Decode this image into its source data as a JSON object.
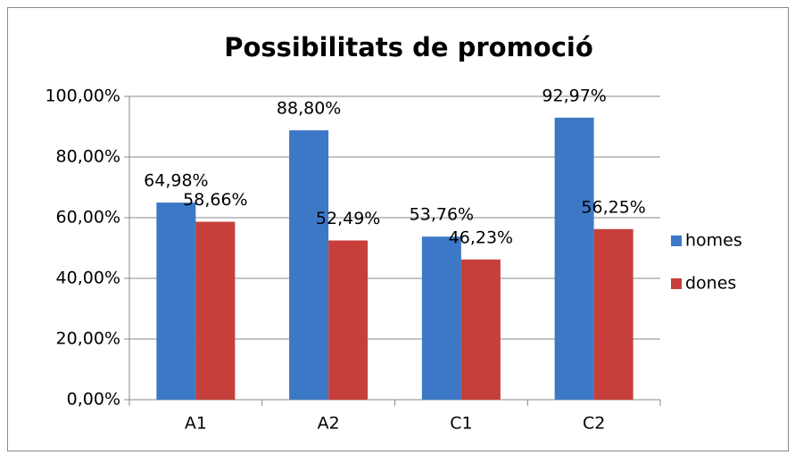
{
  "chart_data": {
    "type": "bar",
    "title": "Possibilitats  de promoció",
    "categories": [
      "A1",
      "A2",
      "C1",
      "C2"
    ],
    "series": [
      {
        "name": "homes",
        "color": "#3d78c6",
        "values": [
          64.98,
          88.8,
          53.76,
          92.97
        ],
        "value_labels": [
          "64,98%",
          "88,80%",
          "53,76%",
          "92,97%"
        ]
      },
      {
        "name": "dones",
        "color": "#c63f3b",
        "values": [
          58.66,
          52.49,
          46.23,
          56.25
        ],
        "value_labels": [
          "58,66%",
          "52,49%",
          "46,23%",
          "56,25%"
        ]
      }
    ],
    "ylim": [
      0,
      100
    ],
    "yticks": [
      {
        "value": 0,
        "label": "0,00%"
      },
      {
        "value": 20,
        "label": "20,00%"
      },
      {
        "value": 40,
        "label": "40,00%"
      },
      {
        "value": 60,
        "label": "60,00%"
      },
      {
        "value": 80,
        "label": "80,00%"
      },
      {
        "value": 100,
        "label": "100,00%"
      }
    ],
    "grid": true,
    "legend": "right"
  }
}
